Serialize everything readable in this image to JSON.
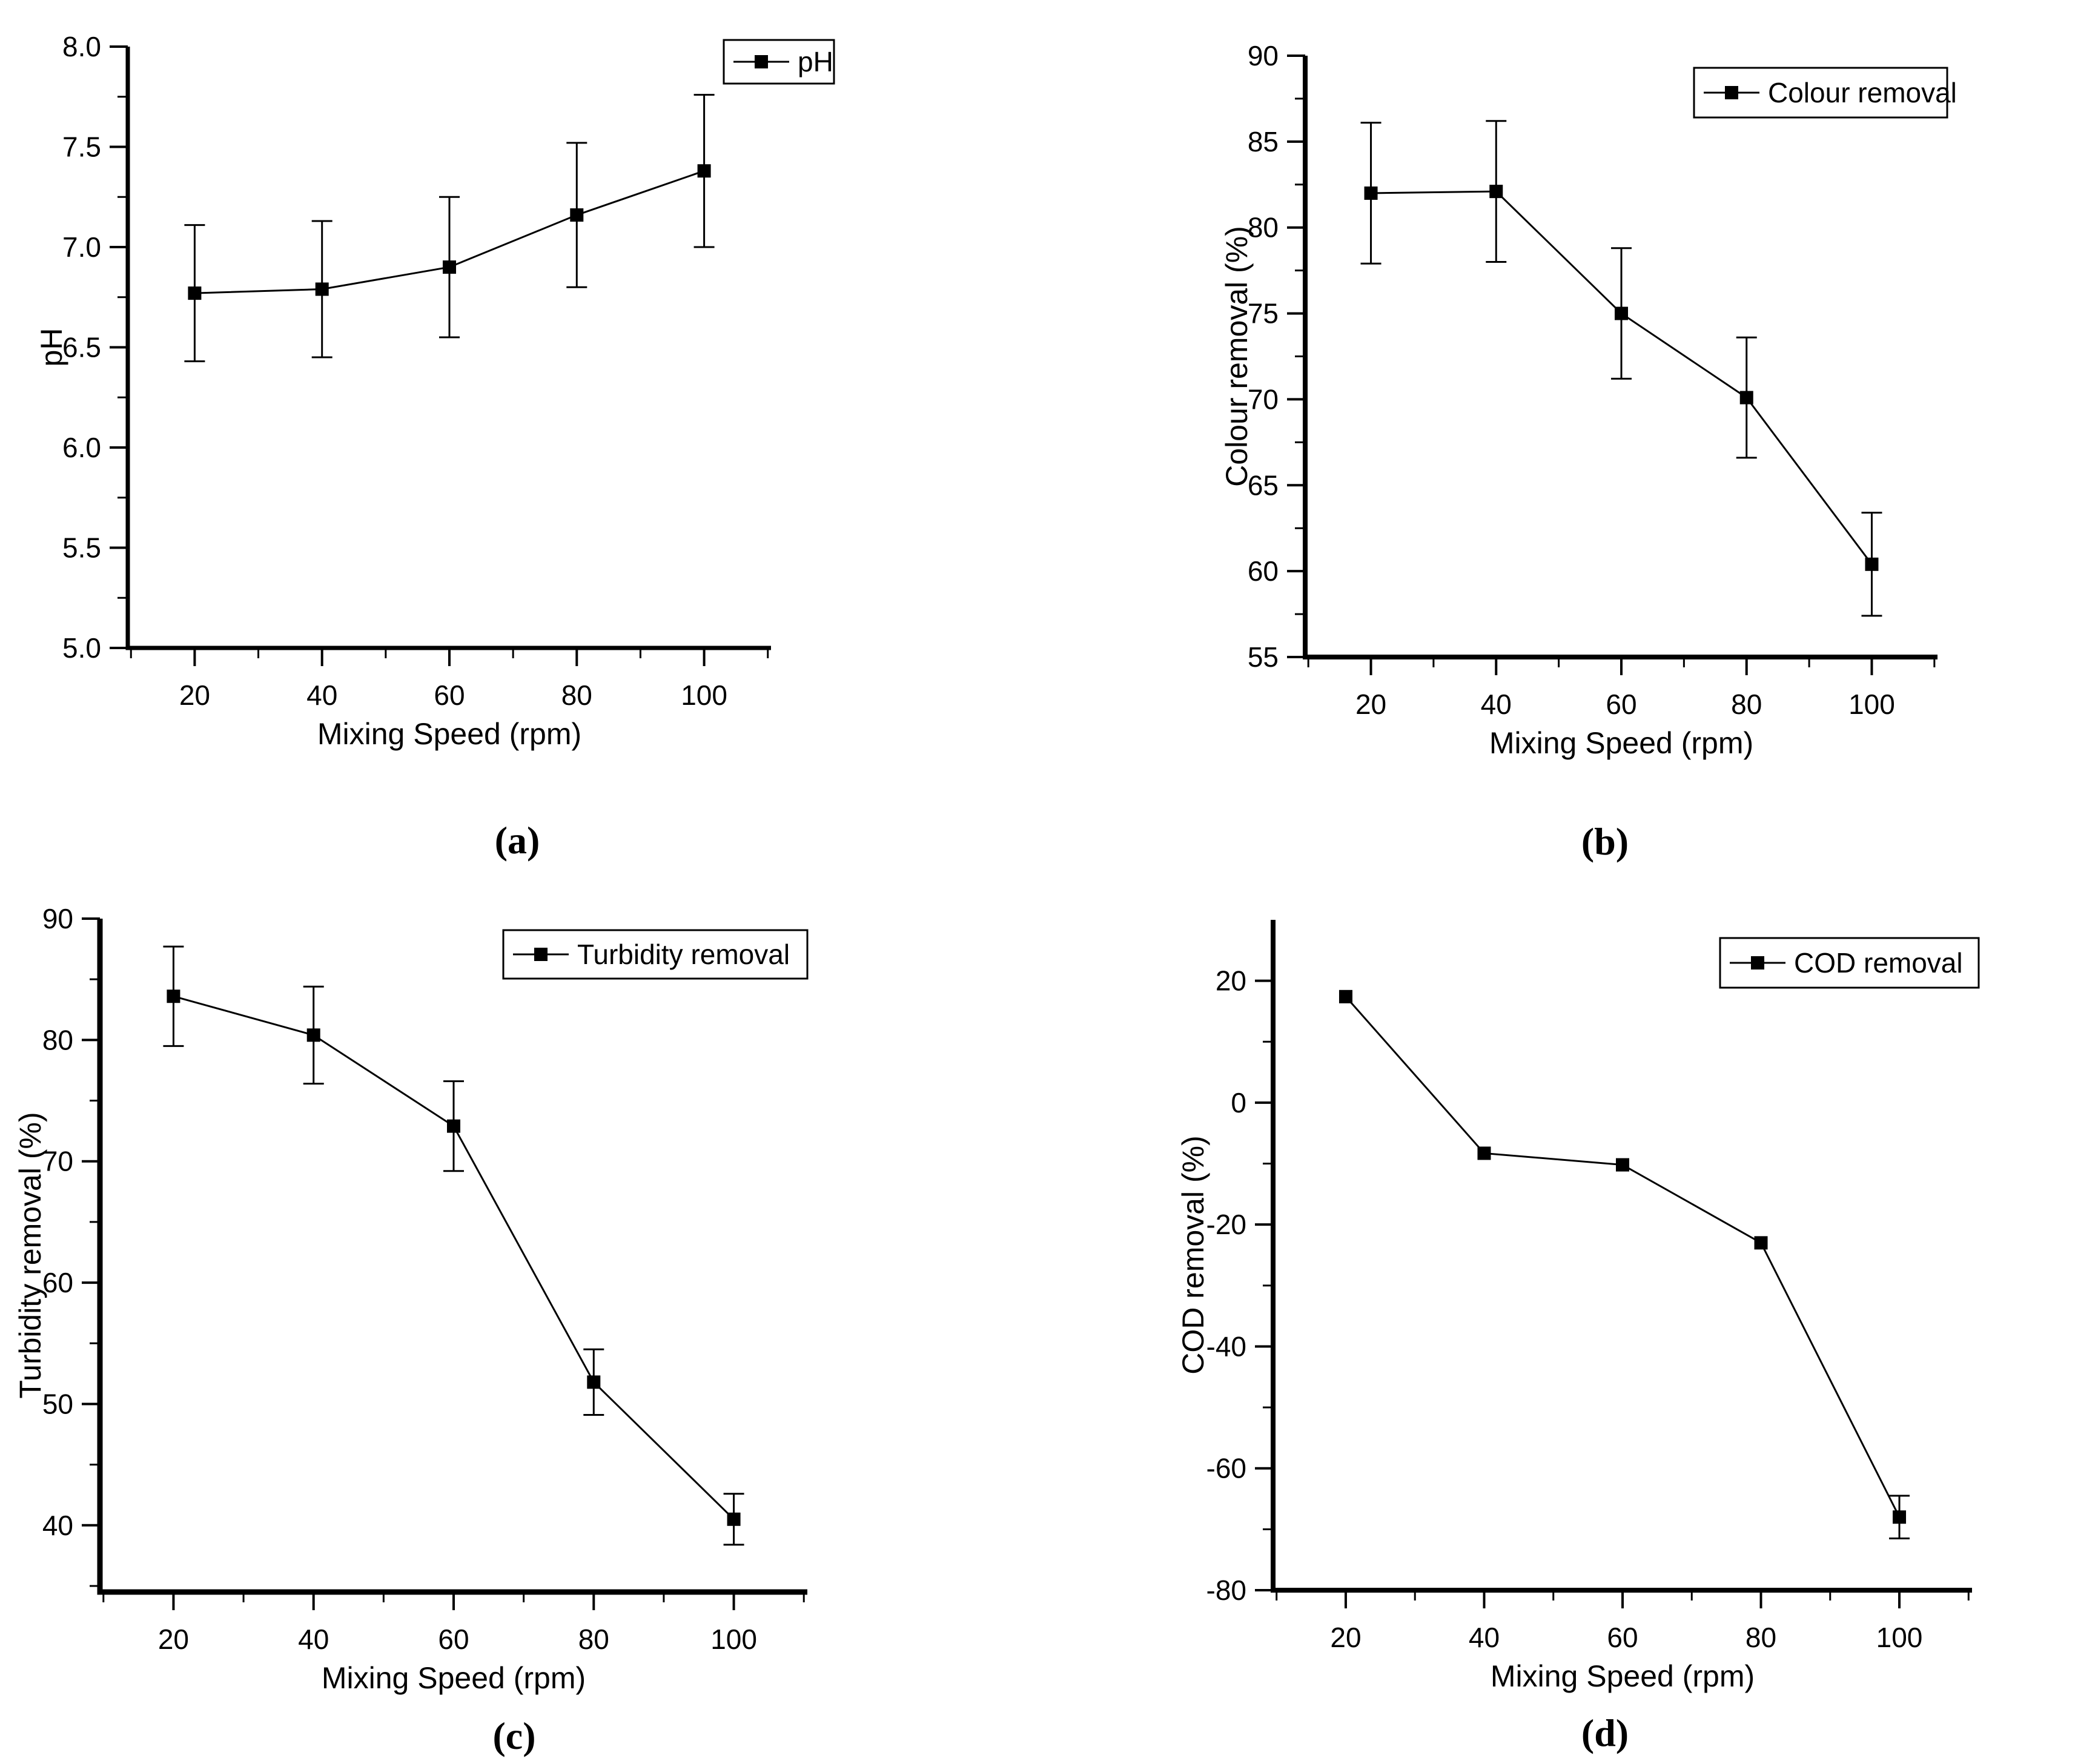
{
  "figure": {
    "background_color": "#ffffff",
    "ink_color": "#000000",
    "description": "Four-panel line chart figure: effect of mixing speed on pH, colour removal, turbidity removal and COD removal"
  },
  "chart_data": [
    {
      "id": "a",
      "type": "line",
      "caption": "(a)",
      "legend_label": "pH",
      "legend_position": "top-right",
      "xlabel": "Mixing Speed (rpm)",
      "ylabel": "pH",
      "x": [
        20,
        40,
        60,
        80,
        100
      ],
      "y": [
        6.77,
        6.79,
        6.9,
        7.16,
        7.38
      ],
      "yerr": [
        0.34,
        0.34,
        0.35,
        0.36,
        0.38
      ],
      "xlim": [
        9.5,
        110.5
      ],
      "ylim": [
        5.0,
        8.0
      ],
      "xticks": [
        20,
        40,
        60,
        80,
        100
      ],
      "xtick_labels": [
        "20",
        "40",
        "60",
        "80",
        "100"
      ],
      "xminor": [
        10,
        30,
        50,
        70,
        90,
        110
      ],
      "yticks": [
        5.0,
        5.5,
        6.0,
        6.5,
        7.0,
        7.5,
        8.0
      ],
      "ytick_labels": [
        "5.0",
        "5.5",
        "6.0",
        "6.5",
        "7.0",
        "7.5",
        "8.0"
      ],
      "yminor": [
        5.25,
        5.75,
        6.25,
        6.75,
        7.25,
        7.75
      ],
      "marker": "filled-square",
      "grid": false
    },
    {
      "id": "b",
      "type": "line",
      "caption": "(b)",
      "legend_label": "Colour removal",
      "legend_position": "top-right",
      "xlabel": "Mixing Speed (rpm)",
      "ylabel": "Colour removal (%)",
      "x": [
        20,
        40,
        60,
        80,
        100
      ],
      "y": [
        82.0,
        82.1,
        75.0,
        70.1,
        60.4
      ],
      "yerr": [
        4.1,
        4.1,
        3.8,
        3.5,
        3.0
      ],
      "xlim": [
        9.5,
        110.5
      ],
      "ylim": [
        55,
        90
      ],
      "xticks": [
        20,
        40,
        60,
        80,
        100
      ],
      "xtick_labels": [
        "20",
        "40",
        "60",
        "80",
        "100"
      ],
      "xminor": [
        10,
        30,
        50,
        70,
        90,
        110
      ],
      "yticks": [
        55,
        60,
        65,
        70,
        75,
        80,
        85,
        90
      ],
      "ytick_labels": [
        "55",
        "60",
        "65",
        "70",
        "75",
        "80",
        "85",
        "90"
      ],
      "yminor": [
        57.5,
        62.5,
        67.5,
        72.5,
        77.5,
        82.5,
        87.5
      ],
      "marker": "filled-square",
      "grid": false
    },
    {
      "id": "c",
      "type": "line",
      "caption": "(c)",
      "legend_label": "Turbidity removal",
      "legend_position": "top-right",
      "xlabel": "Mixing Speed (rpm)",
      "ylabel": "Turbidity removal (%)",
      "x": [
        20,
        40,
        60,
        80,
        100
      ],
      "y": [
        83.6,
        80.4,
        72.9,
        51.8,
        40.5
      ],
      "yerr": [
        4.1,
        4.0,
        3.7,
        2.7,
        2.1
      ],
      "xlim": [
        9.5,
        110.5
      ],
      "ylim": [
        34.5,
        90
      ],
      "xticks": [
        20,
        40,
        60,
        80,
        100
      ],
      "xtick_labels": [
        "20",
        "40",
        "60",
        "80",
        "100"
      ],
      "xminor": [
        10,
        30,
        50,
        70,
        90,
        110
      ],
      "yticks": [
        40,
        50,
        60,
        70,
        80,
        90
      ],
      "ytick_labels": [
        "40",
        "50",
        "60",
        "70",
        "80",
        "90"
      ],
      "yminor": [
        35,
        45,
        55,
        65,
        75,
        85
      ],
      "marker": "filled-square",
      "grid": false
    },
    {
      "id": "d",
      "type": "line",
      "caption": "(d)",
      "legend_label": "COD removal",
      "legend_position": "top-right",
      "xlabel": "Mixing Speed (rpm)",
      "ylabel": "COD removal (%)",
      "x": [
        20,
        40,
        60,
        80,
        100
      ],
      "y": [
        17.4,
        -8.3,
        -10.2,
        -23.0,
        -68.0
      ],
      "yerr": [
        0,
        0,
        0,
        0,
        3.5
      ],
      "xlim": [
        9.5,
        110.5
      ],
      "ylim": [
        -80,
        30
      ],
      "xticks": [
        20,
        40,
        60,
        80,
        100
      ],
      "xtick_labels": [
        "20",
        "40",
        "60",
        "80",
        "100"
      ],
      "xminor": [
        10,
        30,
        50,
        70,
        90,
        110
      ],
      "yticks": [
        -80,
        -60,
        -40,
        -20,
        0,
        20
      ],
      "ytick_labels": [
        "-80",
        "-60",
        "-40",
        "-20",
        "0",
        "20"
      ],
      "yminor": [
        -70,
        -50,
        -30,
        -10,
        10
      ],
      "marker": "filled-square",
      "grid": false
    }
  ]
}
